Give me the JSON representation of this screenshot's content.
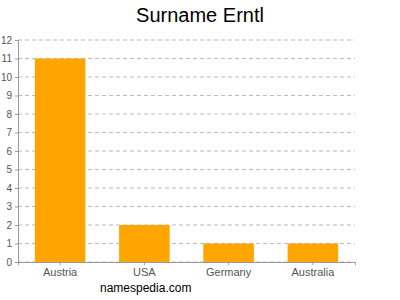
{
  "chart_data": {
    "type": "bar",
    "title": "Surname Erntl",
    "categories": [
      "Austria",
      "USA",
      "Germany",
      "Australia"
    ],
    "values": [
      11,
      2,
      1,
      1
    ],
    "color": "#ffa500",
    "ylim": [
      0,
      12
    ],
    "yticks": [
      0,
      1,
      2,
      3,
      4,
      5,
      6,
      7,
      8,
      9,
      10,
      11,
      12
    ],
    "grid": true,
    "annotations": [
      "namespedia.com"
    ]
  }
}
